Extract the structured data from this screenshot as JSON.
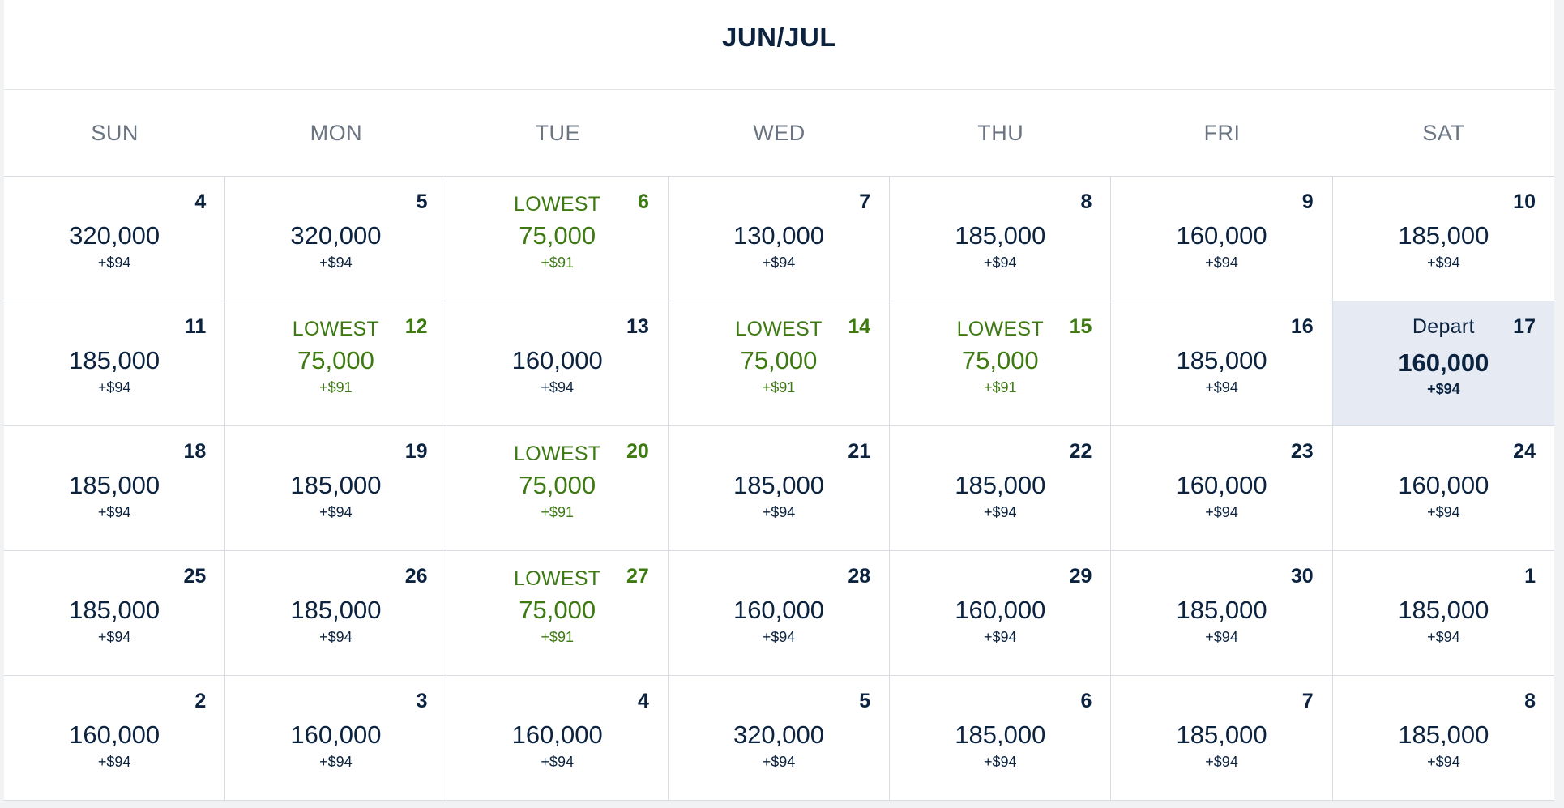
{
  "calendar": {
    "title": "JUN/JUL",
    "weekdays": [
      "SUN",
      "MON",
      "TUE",
      "WED",
      "THU",
      "FRI",
      "SAT"
    ],
    "colors": {
      "text": "#0c2340",
      "lowest": "#3d7a12",
      "selected_bg": "#e6ebf3",
      "weekday": "#6b7480"
    },
    "days": [
      {
        "day": "4",
        "price": "320,000",
        "fee": "+$94",
        "badge": "",
        "state": "normal"
      },
      {
        "day": "5",
        "price": "320,000",
        "fee": "+$94",
        "badge": "",
        "state": "normal"
      },
      {
        "day": "6",
        "price": "75,000",
        "fee": "+$91",
        "badge": "LOWEST",
        "state": "lowest"
      },
      {
        "day": "7",
        "price": "130,000",
        "fee": "+$94",
        "badge": "",
        "state": "normal"
      },
      {
        "day": "8",
        "price": "185,000",
        "fee": "+$94",
        "badge": "",
        "state": "normal"
      },
      {
        "day": "9",
        "price": "160,000",
        "fee": "+$94",
        "badge": "",
        "state": "normal"
      },
      {
        "day": "10",
        "price": "185,000",
        "fee": "+$94",
        "badge": "",
        "state": "normal"
      },
      {
        "day": "11",
        "price": "185,000",
        "fee": "+$94",
        "badge": "",
        "state": "normal"
      },
      {
        "day": "12",
        "price": "75,000",
        "fee": "+$91",
        "badge": "LOWEST",
        "state": "lowest"
      },
      {
        "day": "13",
        "price": "160,000",
        "fee": "+$94",
        "badge": "",
        "state": "normal"
      },
      {
        "day": "14",
        "price": "75,000",
        "fee": "+$91",
        "badge": "LOWEST",
        "state": "lowest"
      },
      {
        "day": "15",
        "price": "75,000",
        "fee": "+$91",
        "badge": "LOWEST",
        "state": "lowest"
      },
      {
        "day": "16",
        "price": "185,000",
        "fee": "+$94",
        "badge": "",
        "state": "normal"
      },
      {
        "day": "17",
        "price": "160,000",
        "fee": "+$94",
        "badge": "Depart",
        "state": "selected"
      },
      {
        "day": "18",
        "price": "185,000",
        "fee": "+$94",
        "badge": "",
        "state": "normal"
      },
      {
        "day": "19",
        "price": "185,000",
        "fee": "+$94",
        "badge": "",
        "state": "normal"
      },
      {
        "day": "20",
        "price": "75,000",
        "fee": "+$91",
        "badge": "LOWEST",
        "state": "lowest"
      },
      {
        "day": "21",
        "price": "185,000",
        "fee": "+$94",
        "badge": "",
        "state": "normal"
      },
      {
        "day": "22",
        "price": "185,000",
        "fee": "+$94",
        "badge": "",
        "state": "normal"
      },
      {
        "day": "23",
        "price": "160,000",
        "fee": "+$94",
        "badge": "",
        "state": "normal"
      },
      {
        "day": "24",
        "price": "160,000",
        "fee": "+$94",
        "badge": "",
        "state": "normal"
      },
      {
        "day": "25",
        "price": "185,000",
        "fee": "+$94",
        "badge": "",
        "state": "normal"
      },
      {
        "day": "26",
        "price": "185,000",
        "fee": "+$94",
        "badge": "",
        "state": "normal"
      },
      {
        "day": "27",
        "price": "75,000",
        "fee": "+$91",
        "badge": "LOWEST",
        "state": "lowest"
      },
      {
        "day": "28",
        "price": "160,000",
        "fee": "+$94",
        "badge": "",
        "state": "normal"
      },
      {
        "day": "29",
        "price": "160,000",
        "fee": "+$94",
        "badge": "",
        "state": "normal"
      },
      {
        "day": "30",
        "price": "185,000",
        "fee": "+$94",
        "badge": "",
        "state": "normal"
      },
      {
        "day": "1",
        "price": "185,000",
        "fee": "+$94",
        "badge": "",
        "state": "normal"
      },
      {
        "day": "2",
        "price": "160,000",
        "fee": "+$94",
        "badge": "",
        "state": "normal"
      },
      {
        "day": "3",
        "price": "160,000",
        "fee": "+$94",
        "badge": "",
        "state": "normal"
      },
      {
        "day": "4",
        "price": "160,000",
        "fee": "+$94",
        "badge": "",
        "state": "normal"
      },
      {
        "day": "5",
        "price": "320,000",
        "fee": "+$94",
        "badge": "",
        "state": "normal"
      },
      {
        "day": "6",
        "price": "185,000",
        "fee": "+$94",
        "badge": "",
        "state": "normal"
      },
      {
        "day": "7",
        "price": "185,000",
        "fee": "+$94",
        "badge": "",
        "state": "normal"
      },
      {
        "day": "8",
        "price": "185,000",
        "fee": "+$94",
        "badge": "",
        "state": "normal"
      }
    ]
  }
}
